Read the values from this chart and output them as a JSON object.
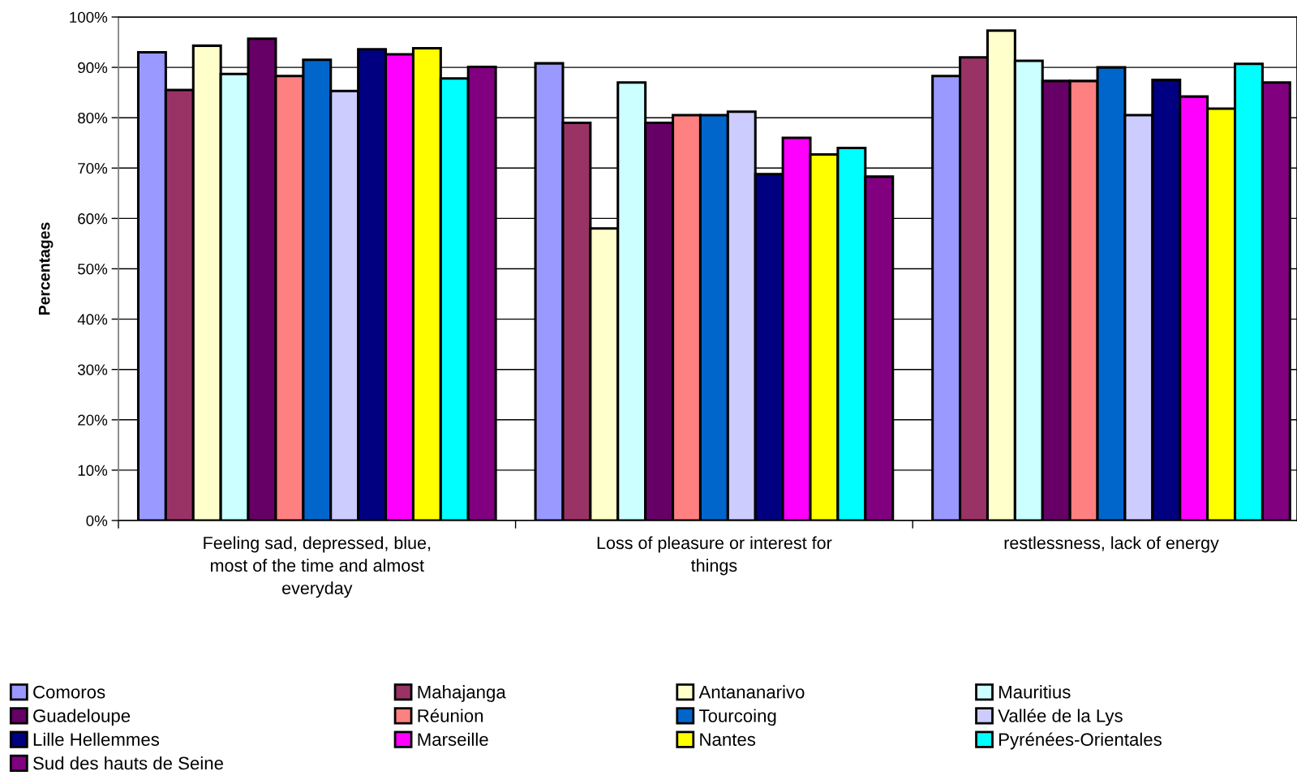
{
  "chart_data": {
    "type": "bar",
    "ylabel": "Percentages",
    "categories": [
      "Feeling sad, depressed, blue, most of the time and almost everyday",
      "Loss of pleasure or interest for things",
      "restlessness, lack of energy"
    ],
    "series": [
      {
        "name": "Comoros",
        "color": "#9999ff",
        "values": [
          93,
          90.8,
          88.3
        ]
      },
      {
        "name": "Mahajanga",
        "color": "#993366",
        "values": [
          85.5,
          79,
          92
        ]
      },
      {
        "name": "Antananarivo",
        "color": "#ffffcc",
        "values": [
          94.3,
          58,
          97.3
        ]
      },
      {
        "name": "Mauritius",
        "color": "#ccffff",
        "values": [
          88.7,
          87,
          91.3
        ]
      },
      {
        "name": "Guadeloupe",
        "color": "#660066",
        "values": [
          95.7,
          79,
          87.3
        ]
      },
      {
        "name": "Réunion",
        "color": "#ff8080",
        "values": [
          88.3,
          80.5,
          87.3
        ]
      },
      {
        "name": "Tourcoing",
        "color": "#0066cc",
        "values": [
          91.5,
          80.5,
          90
        ]
      },
      {
        "name": "Vallée de la Lys",
        "color": "#ccccff",
        "values": [
          85.3,
          81.2,
          80.5
        ]
      },
      {
        "name": "Lille Hellemmes",
        "color": "#000080",
        "values": [
          93.6,
          68.8,
          87.5
        ]
      },
      {
        "name": "Marseille",
        "color": "#ff00ff",
        "values": [
          92.6,
          76,
          84.2
        ]
      },
      {
        "name": "Nantes",
        "color": "#ffff00",
        "values": [
          93.8,
          72.7,
          81.8
        ]
      },
      {
        "name": "Pyrénées-Orientales",
        "color": "#00ffff",
        "values": [
          87.8,
          74,
          90.7
        ]
      },
      {
        "name": "Sud des hauts de Seine",
        "color": "#800080",
        "values": [
          90.1,
          68.3,
          87
        ]
      }
    ],
    "ylim": [
      0,
      100
    ],
    "yticks": [
      {
        "value": 0,
        "label": "0%"
      },
      {
        "value": 10,
        "label": "10%"
      },
      {
        "value": 20,
        "label": "20%"
      },
      {
        "value": 30,
        "label": "30%"
      },
      {
        "value": 40,
        "label": "40%"
      },
      {
        "value": 50,
        "label": "50%"
      },
      {
        "value": 60,
        "label": "60%"
      },
      {
        "value": 70,
        "label": "70%"
      },
      {
        "value": 80,
        "label": "80%"
      },
      {
        "value": 90,
        "label": "90%"
      },
      {
        "value": 100,
        "label": "100%"
      }
    ],
    "grid": "y",
    "legend": "bottom"
  }
}
